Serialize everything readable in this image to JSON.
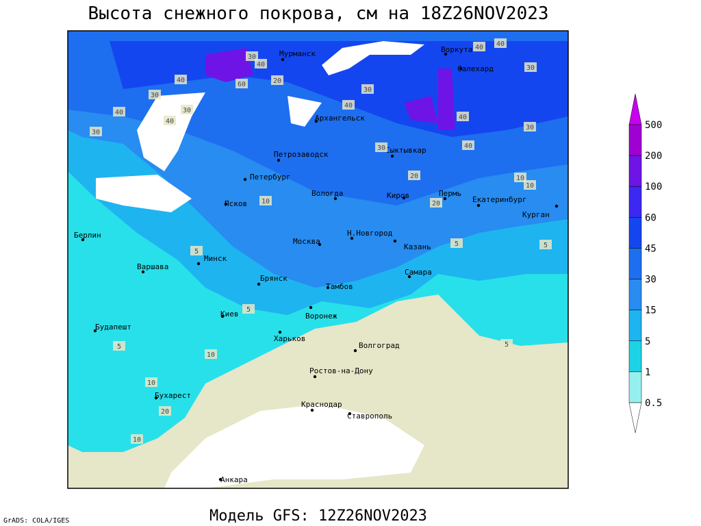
{
  "title": "Высота снежного покрова, см на 18Z26NOV2023",
  "footer": {
    "credit": "GrADS: COLA/IGES",
    "model": "Модель GFS: 12Z26NOV2023"
  },
  "cities": [
    "Мурманск",
    "Воркута",
    "Салехард",
    "Архангельск",
    "Петрозаводск",
    "Сыктывкар",
    "Петербург",
    "Вологда",
    "Киров",
    "Пермь",
    "Екатеринбург",
    "Курган",
    "Псков",
    "Берлин",
    "Н.Новгород",
    "Москва",
    "Казань",
    "Минск",
    "Варшава",
    "Самара",
    "Брянск",
    "Тамбов",
    "Воронеж",
    "Киев",
    "Будапешт",
    "Харьков",
    "Волгоград",
    "Ростов-на-Дону",
    "Бухарест",
    "Краснодар",
    "Ставрополь",
    "Анкара"
  ],
  "contour_labels": [
    40,
    30,
    40,
    60,
    30,
    20,
    40,
    30,
    30,
    40,
    40,
    30,
    40,
    40,
    30,
    40,
    30,
    40,
    30,
    20,
    10,
    10,
    20,
    10,
    5,
    5,
    5,
    5,
    10,
    10,
    5,
    20,
    10,
    5
  ],
  "legend": {
    "levels": [
      500,
      200,
      100,
      60,
      45,
      30,
      15,
      5,
      1,
      0.5
    ],
    "colors": [
      "#c800f0",
      "#a000d2",
      "#6e14e6",
      "#3c28f0",
      "#1446f0",
      "#1e6ef0",
      "#288cf0",
      "#1eb4f0",
      "#1ed2e6",
      "#96f0f0",
      "#ffffff"
    ]
  }
}
